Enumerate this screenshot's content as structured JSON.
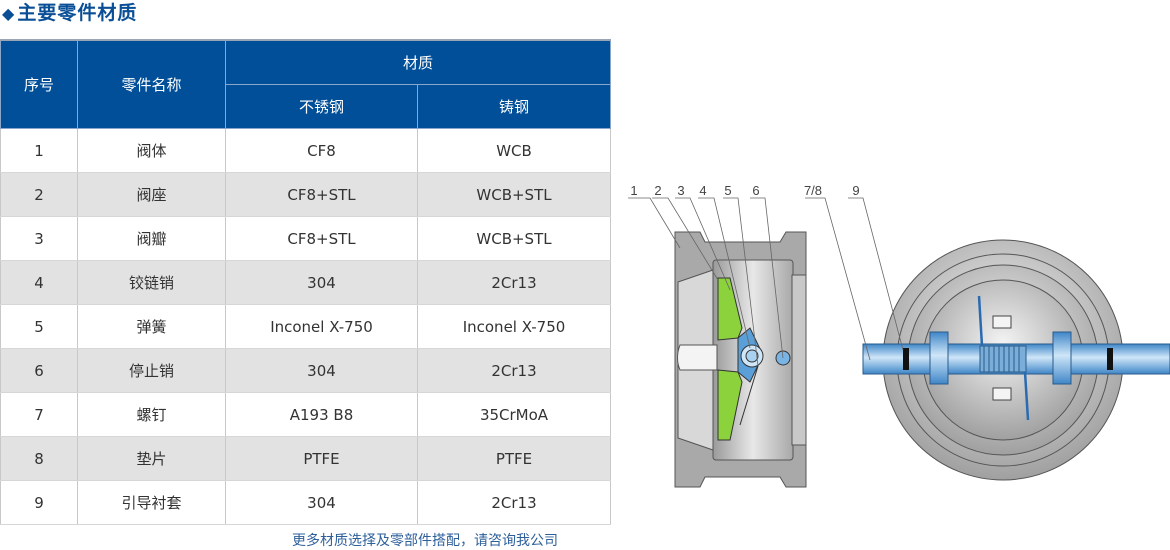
{
  "title": {
    "bullet": "◆",
    "text": "主要零件材质"
  },
  "table": {
    "headers": {
      "no": "序号",
      "part_name": "零件名称",
      "material": "材质",
      "stainless": "不锈钢",
      "cast_steel": "铸钢"
    },
    "rows": [
      {
        "no": "1",
        "name": "阀体",
        "stainless": "CF8",
        "cast": "WCB"
      },
      {
        "no": "2",
        "name": "阀座",
        "stainless": "CF8+STL",
        "cast": "WCB+STL"
      },
      {
        "no": "3",
        "name": "阀瓣",
        "stainless": "CF8+STL",
        "cast": "WCB+STL"
      },
      {
        "no": "4",
        "name": "铰链销",
        "stainless": "304",
        "cast": "2Cr13"
      },
      {
        "no": "5",
        "name": "弹簧",
        "stainless": "Inconel X-750",
        "cast": "Inconel X-750"
      },
      {
        "no": "6",
        "name": "停止销",
        "stainless": "304",
        "cast": "2Cr13"
      },
      {
        "no": "7",
        "name": "螺钉",
        "stainless": "A193 B8",
        "cast": "35CrMoA"
      },
      {
        "no": "8",
        "name": "垫片",
        "stainless": "PTFE",
        "cast": "PTFE"
      },
      {
        "no": "9",
        "name": "引导衬套",
        "stainless": "304",
        "cast": "2Cr13"
      }
    ]
  },
  "footer": "更多材质选择及零部件搭配，请咨询我公司",
  "diagram": {
    "labels": [
      "1",
      "2",
      "3",
      "4",
      "5",
      "6",
      "7/8",
      "9"
    ],
    "colors": {
      "header": "#004f98",
      "disc": "#8cd23c",
      "pin": "#5a9fd8",
      "body": "#b0b0b0"
    }
  }
}
